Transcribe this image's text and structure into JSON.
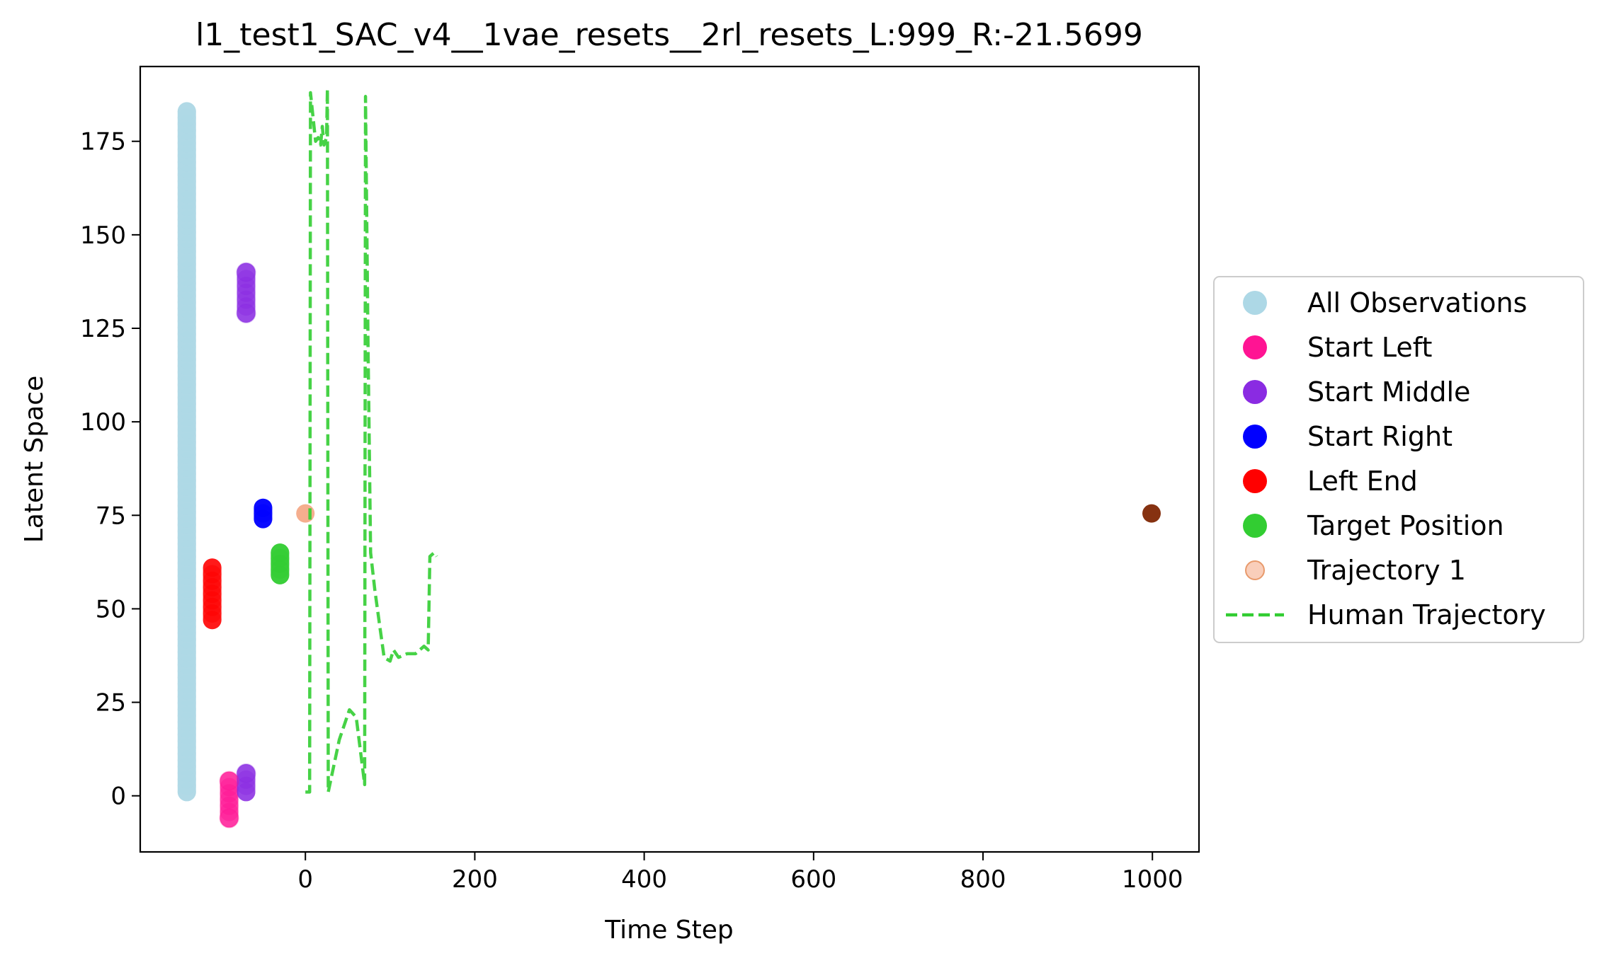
{
  "chart_data": {
    "type": "scatter",
    "title": "l1_test1_SAC_v4__1vae_resets__2rl_resets_L:999_R:-21.5699",
    "xlabel": "Time Step",
    "ylabel": "Latent Space",
    "xlim": [
      -195,
      1055
    ],
    "ylim": [
      -15,
      195
    ],
    "xticks": [
      0,
      200,
      400,
      600,
      800,
      1000
    ],
    "xtick_labels": [
      "0",
      "200",
      "400",
      "600",
      "800",
      "1000"
    ],
    "yticks": [
      0,
      25,
      50,
      75,
      100,
      125,
      150,
      175
    ],
    "ytick_labels": [
      "0",
      "25",
      "50",
      "75",
      "100",
      "125",
      "150",
      "175"
    ],
    "grid": false,
    "legend_placement": "outside-right",
    "colors": {
      "all_observations": "#add8e6",
      "start_left": "#ff1493",
      "start_middle": "#8a2be2",
      "start_right": "#0000ff",
      "left_end": "#ff0000",
      "target_position": "#32cd32",
      "trajectory_start": "#f4a582",
      "trajectory_mid": "#e8600f",
      "trajectory_end": "#7f2704",
      "human_trajectory": "#32cd32"
    },
    "series": [
      {
        "name": "All Observations",
        "kind": "scatter",
        "x": -140,
        "y_range": [
          1,
          183
        ]
      },
      {
        "name": "Start Left",
        "kind": "scatter",
        "x": -90,
        "y_range": [
          -6,
          4
        ]
      },
      {
        "name": "Start Middle",
        "kind": "scatter",
        "x": -70,
        "y_groups": [
          [
            129,
            140
          ],
          [
            1,
            6
          ]
        ]
      },
      {
        "name": "Start Right",
        "kind": "scatter",
        "x": -50,
        "y_range": [
          74,
          77
        ]
      },
      {
        "name": "Left End",
        "kind": "scatter",
        "x": -110,
        "y_range": [
          47,
          61
        ]
      },
      {
        "name": "Target Position",
        "kind": "scatter",
        "x": -30,
        "y_range": [
          59,
          65
        ]
      },
      {
        "name": "Trajectory 1",
        "kind": "scatter",
        "x_range": [
          0,
          999
        ],
        "y": 75.5
      },
      {
        "name": "Human Trajectory",
        "kind": "dashed-line",
        "points": [
          [
            0,
            1
          ],
          [
            5,
            1
          ],
          [
            6,
            188
          ],
          [
            12,
            175
          ],
          [
            15,
            176
          ],
          [
            18,
            174
          ],
          [
            20,
            179
          ],
          [
            22,
            174
          ],
          [
            25,
            176
          ],
          [
            26,
            189
          ],
          [
            27,
            1
          ],
          [
            40,
            15
          ],
          [
            52,
            23
          ],
          [
            60,
            21
          ],
          [
            70,
            3
          ],
          [
            71,
            187
          ],
          [
            74,
            120
          ],
          [
            77,
            65
          ],
          [
            82,
            55
          ],
          [
            88,
            45
          ],
          [
            93,
            37
          ],
          [
            100,
            36
          ],
          [
            104,
            39
          ],
          [
            110,
            37
          ],
          [
            120,
            38
          ],
          [
            130,
            38
          ],
          [
            140,
            40
          ],
          [
            145,
            39
          ],
          [
            147,
            64
          ],
          [
            152,
            65
          ],
          [
            155,
            64
          ]
        ]
      }
    ]
  }
}
